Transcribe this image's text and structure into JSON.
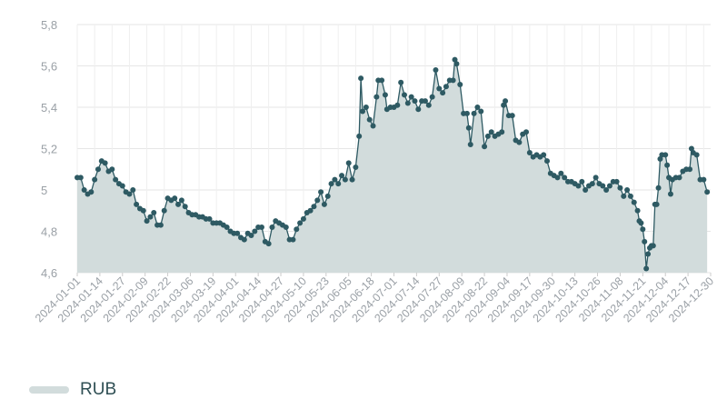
{
  "chart_data": {
    "type": "area",
    "title": "",
    "xlabel": "",
    "ylabel": "",
    "ylim": [
      4.6,
      5.8
    ],
    "y_ticks": [
      "4,6",
      "4,8",
      "5",
      "5,2",
      "5,4",
      "5,6",
      "5,8"
    ],
    "x_ticks": [
      "2024-01-01",
      "2024-01-14",
      "2024-01-27",
      "2024-02-09",
      "2024-02-22",
      "2024-03-06",
      "2024-03-19",
      "2024-04-01",
      "2024-04-14",
      "2024-04-27",
      "2024-05-10",
      "2024-05-23",
      "2024-06-05",
      "2024-06-18",
      "2024-07-01",
      "2024-07-14",
      "2024-07-27",
      "2024-08-09",
      "2024-08-22",
      "2024-09-04",
      "2024-09-17",
      "2024-09-30",
      "2024-10-13",
      "2024-10-26",
      "2024-11-08",
      "2024-11-21",
      "2024-12-04",
      "2024-12-17",
      "2024-12-30"
    ],
    "x_range": [
      "2024-01-01",
      "2024-12-30"
    ],
    "grid": true,
    "legend_position": "bottom-left",
    "colors": {
      "line": "#2e5a63",
      "fill": "#d2dcdc",
      "marker": "#2e5a63",
      "grid": "#e6e6e6",
      "tick_text": "#9aa0a6"
    },
    "series": [
      {
        "name": "RUB",
        "points": [
          [
            "2024-01-01",
            5.06
          ],
          [
            "2024-01-03",
            5.06
          ],
          [
            "2024-01-05",
            5.0
          ],
          [
            "2024-01-07",
            4.98
          ],
          [
            "2024-01-09",
            4.99
          ],
          [
            "2024-01-11",
            5.05
          ],
          [
            "2024-01-13",
            5.1
          ],
          [
            "2024-01-15",
            5.14
          ],
          [
            "2024-01-17",
            5.13
          ],
          [
            "2024-01-19",
            5.09
          ],
          [
            "2024-01-21",
            5.1
          ],
          [
            "2024-01-23",
            5.05
          ],
          [
            "2024-01-25",
            5.03
          ],
          [
            "2024-01-27",
            5.02
          ],
          [
            "2024-01-29",
            4.99
          ],
          [
            "2024-01-31",
            4.98
          ],
          [
            "2024-02-02",
            5.0
          ],
          [
            "2024-02-04",
            4.93
          ],
          [
            "2024-02-06",
            4.91
          ],
          [
            "2024-02-08",
            4.9
          ],
          [
            "2024-02-10",
            4.85
          ],
          [
            "2024-02-12",
            4.87
          ],
          [
            "2024-02-14",
            4.89
          ],
          [
            "2024-02-16",
            4.83
          ],
          [
            "2024-02-18",
            4.83
          ],
          [
            "2024-02-20",
            4.9
          ],
          [
            "2024-02-22",
            4.96
          ],
          [
            "2024-02-24",
            4.95
          ],
          [
            "2024-02-26",
            4.96
          ],
          [
            "2024-02-28",
            4.93
          ],
          [
            "2024-03-01",
            4.95
          ],
          [
            "2024-03-03",
            4.92
          ],
          [
            "2024-03-05",
            4.89
          ],
          [
            "2024-03-07",
            4.88
          ],
          [
            "2024-03-09",
            4.88
          ],
          [
            "2024-03-11",
            4.87
          ],
          [
            "2024-03-13",
            4.87
          ],
          [
            "2024-03-15",
            4.86
          ],
          [
            "2024-03-17",
            4.86
          ],
          [
            "2024-03-19",
            4.84
          ],
          [
            "2024-03-21",
            4.84
          ],
          [
            "2024-03-23",
            4.84
          ],
          [
            "2024-03-25",
            4.83
          ],
          [
            "2024-03-27",
            4.82
          ],
          [
            "2024-03-29",
            4.8
          ],
          [
            "2024-03-31",
            4.79
          ],
          [
            "2024-04-02",
            4.79
          ],
          [
            "2024-04-04",
            4.77
          ],
          [
            "2024-04-06",
            4.76
          ],
          [
            "2024-04-08",
            4.79
          ],
          [
            "2024-04-10",
            4.78
          ],
          [
            "2024-04-12",
            4.8
          ],
          [
            "2024-04-14",
            4.82
          ],
          [
            "2024-04-16",
            4.82
          ],
          [
            "2024-04-18",
            4.75
          ],
          [
            "2024-04-20",
            4.74
          ],
          [
            "2024-04-22",
            4.82
          ],
          [
            "2024-04-24",
            4.85
          ],
          [
            "2024-04-26",
            4.84
          ],
          [
            "2024-04-28",
            4.83
          ],
          [
            "2024-04-30",
            4.82
          ],
          [
            "2024-05-02",
            4.76
          ],
          [
            "2024-05-04",
            4.76
          ],
          [
            "2024-05-06",
            4.81
          ],
          [
            "2024-05-08",
            4.84
          ],
          [
            "2024-05-10",
            4.86
          ],
          [
            "2024-05-12",
            4.89
          ],
          [
            "2024-05-14",
            4.9
          ],
          [
            "2024-05-16",
            4.92
          ],
          [
            "2024-05-18",
            4.95
          ],
          [
            "2024-05-20",
            4.99
          ],
          [
            "2024-05-22",
            4.93
          ],
          [
            "2024-05-24",
            4.97
          ],
          [
            "2024-05-26",
            5.03
          ],
          [
            "2024-05-28",
            5.05
          ],
          [
            "2024-05-30",
            5.03
          ],
          [
            "2024-06-01",
            5.07
          ],
          [
            "2024-06-03",
            5.05
          ],
          [
            "2024-06-05",
            5.13
          ],
          [
            "2024-06-07",
            5.05
          ],
          [
            "2024-06-09",
            5.11
          ],
          [
            "2024-06-11",
            5.26
          ],
          [
            "2024-06-12",
            5.54
          ],
          [
            "2024-06-13",
            5.38
          ],
          [
            "2024-06-15",
            5.4
          ],
          [
            "2024-06-17",
            5.34
          ],
          [
            "2024-06-19",
            5.31
          ],
          [
            "2024-06-21",
            5.45
          ],
          [
            "2024-06-22",
            5.53
          ],
          [
            "2024-06-24",
            5.53
          ],
          [
            "2024-06-26",
            5.46
          ],
          [
            "2024-06-27",
            5.39
          ],
          [
            "2024-06-29",
            5.4
          ],
          [
            "2024-07-01",
            5.4
          ],
          [
            "2024-07-03",
            5.41
          ],
          [
            "2024-07-05",
            5.52
          ],
          [
            "2024-07-07",
            5.46
          ],
          [
            "2024-07-09",
            5.42
          ],
          [
            "2024-07-11",
            5.45
          ],
          [
            "2024-07-13",
            5.43
          ],
          [
            "2024-07-15",
            5.39
          ],
          [
            "2024-07-17",
            5.43
          ],
          [
            "2024-07-19",
            5.43
          ],
          [
            "2024-07-21",
            5.41
          ],
          [
            "2024-07-23",
            5.45
          ],
          [
            "2024-07-25",
            5.58
          ],
          [
            "2024-07-27",
            5.49
          ],
          [
            "2024-07-29",
            5.47
          ],
          [
            "2024-07-31",
            5.5
          ],
          [
            "2024-08-02",
            5.53
          ],
          [
            "2024-08-04",
            5.53
          ],
          [
            "2024-08-05",
            5.63
          ],
          [
            "2024-08-06",
            5.61
          ],
          [
            "2024-08-08",
            5.51
          ],
          [
            "2024-08-10",
            5.37
          ],
          [
            "2024-08-12",
            5.37
          ],
          [
            "2024-08-13",
            5.3
          ],
          [
            "2024-08-14",
            5.22
          ],
          [
            "2024-08-16",
            5.37
          ],
          [
            "2024-08-18",
            5.4
          ],
          [
            "2024-08-20",
            5.38
          ],
          [
            "2024-08-22",
            5.21
          ],
          [
            "2024-08-24",
            5.26
          ],
          [
            "2024-08-26",
            5.28
          ],
          [
            "2024-08-28",
            5.26
          ],
          [
            "2024-08-30",
            5.27
          ],
          [
            "2024-09-01",
            5.28
          ],
          [
            "2024-09-02",
            5.41
          ],
          [
            "2024-09-03",
            5.43
          ],
          [
            "2024-09-05",
            5.36
          ],
          [
            "2024-09-07",
            5.36
          ],
          [
            "2024-09-09",
            5.24
          ],
          [
            "2024-09-11",
            5.23
          ],
          [
            "2024-09-13",
            5.27
          ],
          [
            "2024-09-15",
            5.28
          ],
          [
            "2024-09-17",
            5.18
          ],
          [
            "2024-09-19",
            5.16
          ],
          [
            "2024-09-21",
            5.17
          ],
          [
            "2024-09-23",
            5.16
          ],
          [
            "2024-09-25",
            5.17
          ],
          [
            "2024-09-27",
            5.14
          ],
          [
            "2024-09-29",
            5.08
          ],
          [
            "2024-10-01",
            5.07
          ],
          [
            "2024-10-03",
            5.06
          ],
          [
            "2024-10-05",
            5.08
          ],
          [
            "2024-10-07",
            5.06
          ],
          [
            "2024-10-09",
            5.04
          ],
          [
            "2024-10-11",
            5.04
          ],
          [
            "2024-10-13",
            5.03
          ],
          [
            "2024-10-15",
            5.02
          ],
          [
            "2024-10-17",
            5.04
          ],
          [
            "2024-10-19",
            5.0
          ],
          [
            "2024-10-21",
            5.02
          ],
          [
            "2024-10-23",
            5.03
          ],
          [
            "2024-10-25",
            5.06
          ],
          [
            "2024-10-27",
            5.03
          ],
          [
            "2024-10-29",
            5.02
          ],
          [
            "2024-10-31",
            5.0
          ],
          [
            "2024-11-02",
            5.02
          ],
          [
            "2024-11-04",
            5.04
          ],
          [
            "2024-11-06",
            5.04
          ],
          [
            "2024-11-08",
            5.01
          ],
          [
            "2024-11-10",
            4.97
          ],
          [
            "2024-11-12",
            5.0
          ],
          [
            "2024-11-14",
            4.97
          ],
          [
            "2024-11-16",
            4.94
          ],
          [
            "2024-11-18",
            4.9
          ],
          [
            "2024-11-19",
            4.85
          ],
          [
            "2024-11-20",
            4.84
          ],
          [
            "2024-11-21",
            4.81
          ],
          [
            "2024-11-22",
            4.75
          ],
          [
            "2024-11-23",
            4.62
          ],
          [
            "2024-11-24",
            4.69
          ],
          [
            "2024-11-25",
            4.72
          ],
          [
            "2024-11-26",
            4.73
          ],
          [
            "2024-11-27",
            4.73
          ],
          [
            "2024-11-28",
            4.93
          ],
          [
            "2024-11-29",
            4.93
          ],
          [
            "2024-11-30",
            5.01
          ],
          [
            "2024-12-01",
            5.15
          ],
          [
            "2024-12-02",
            5.17
          ],
          [
            "2024-12-04",
            5.17
          ],
          [
            "2024-12-05",
            5.12
          ],
          [
            "2024-12-06",
            5.06
          ],
          [
            "2024-12-07",
            4.98
          ],
          [
            "2024-12-08",
            5.05
          ],
          [
            "2024-12-10",
            5.06
          ],
          [
            "2024-12-12",
            5.06
          ],
          [
            "2024-12-14",
            5.09
          ],
          [
            "2024-12-16",
            5.1
          ],
          [
            "2024-12-18",
            5.1
          ],
          [
            "2024-12-19",
            5.2
          ],
          [
            "2024-12-20",
            5.18
          ],
          [
            "2024-12-22",
            5.17
          ],
          [
            "2024-12-24",
            5.05
          ],
          [
            "2024-12-26",
            5.05
          ],
          [
            "2024-12-28",
            4.99
          ]
        ]
      }
    ]
  },
  "legend": {
    "label": "RUB"
  }
}
